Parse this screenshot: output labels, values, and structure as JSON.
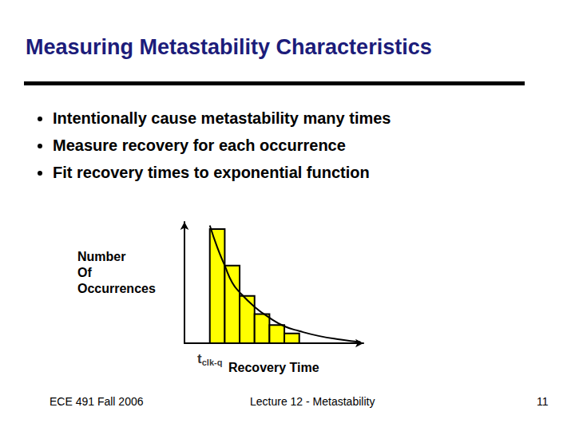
{
  "slide": {
    "title": "Measuring Metastability Characteristics",
    "bullets": [
      "Intentionally cause metastability many times",
      "Measure recovery for each occurrence",
      "Fit recovery times to exponential function"
    ],
    "footer": {
      "left": "ECE 491 Fall 2006",
      "center": "Lecture 12 - Metastability",
      "right": "11"
    }
  },
  "chart_data": {
    "type": "histogram",
    "xlabel": "Recovery Time",
    "ylabel": "Number\nOf\nOccurrences",
    "bins": [
      1.7,
      2.7,
      3.7,
      4.7,
      5.7,
      6.7,
      7.7
    ],
    "values": [
      94,
      64,
      39,
      24,
      15,
      8
    ],
    "color": "#ffff00",
    "fit": {
      "type": "line",
      "color": "#000000",
      "x": [
        1.7,
        2.2,
        2.7,
        3.2,
        3.7,
        4.7,
        5.7,
        6.7,
        7.7,
        9,
        10.5,
        11.8
      ],
      "values": [
        97,
        79,
        64,
        50,
        42,
        30,
        21,
        14,
        10,
        6,
        3,
        1
      ]
    },
    "annotation": {
      "text": "t",
      "subscript": "clk-q",
      "x": 1.7
    },
    "xlim": [
      0,
      12
    ],
    "ylim": [
      0,
      100
    ],
    "tick_labels": false,
    "grid": false
  }
}
